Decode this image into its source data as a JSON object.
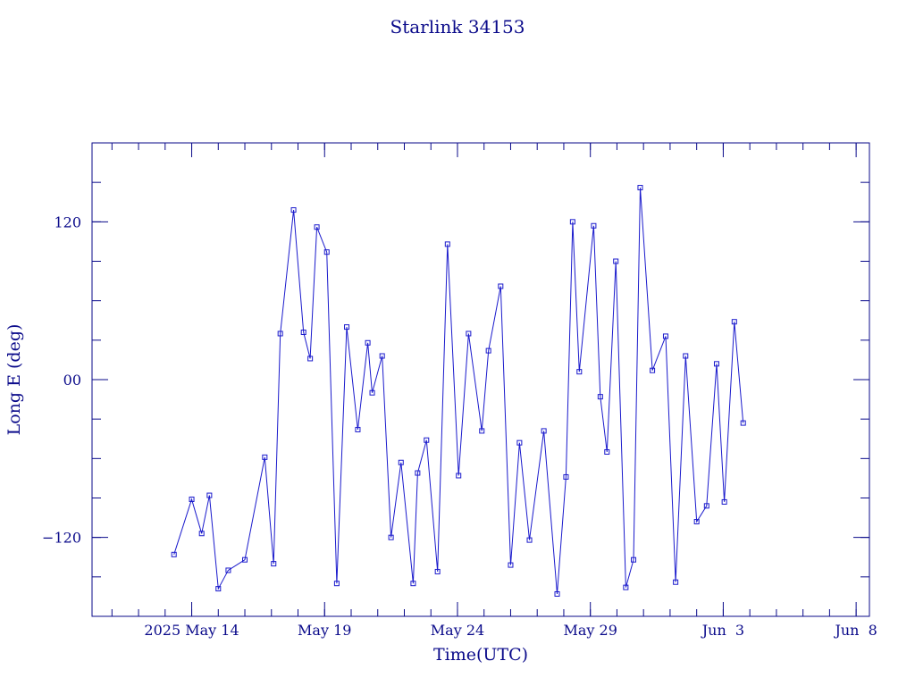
{
  "chart_data": {
    "type": "line",
    "title": "Starlink 34153",
    "xlabel": "Time(UTC)",
    "ylabel": "Long E (deg)",
    "xlim": [
      "2025-05-10T06:00",
      "2025-06-08T12:00"
    ],
    "ylim": [
      -180,
      180
    ],
    "x_ticks": [
      {
        "label": "2025 May 14",
        "date": "2025-05-14"
      },
      {
        "label": "May 19",
        "date": "2025-05-19"
      },
      {
        "label": "May 24",
        "date": "2025-05-24"
      },
      {
        "label": "May 29",
        "date": "2025-05-29"
      },
      {
        "label": "Jun  3",
        "date": "2025-06-03"
      },
      {
        "label": "Jun  8",
        "date": "2025-06-08"
      }
    ],
    "y_ticks": [
      {
        "label": "−120",
        "value": -120
      },
      {
        "label": "00",
        "value": 0
      },
      {
        "label": "120",
        "value": 120
      }
    ],
    "color": "#1a1acc",
    "grid": false,
    "x": [
      "2025-05-13T08:00",
      "2025-05-14T00:00",
      "2025-05-14T09:00",
      "2025-05-14T16:00",
      "2025-05-15T00:00",
      "2025-05-15T09:00",
      "2025-05-16T00:00",
      "2025-05-16T18:00",
      "2025-05-17T02:00",
      "2025-05-17T08:00",
      "2025-05-17T20:00",
      "2025-05-18T05:00",
      "2025-05-18T11:00",
      "2025-05-18T17:00",
      "2025-05-19T02:00",
      "2025-05-19T11:00",
      "2025-05-19T20:00",
      "2025-05-20T06:00",
      "2025-05-20T15:00",
      "2025-05-20T19:00",
      "2025-05-21T04:00",
      "2025-05-21T12:00",
      "2025-05-21T21:00",
      "2025-05-22T08:00",
      "2025-05-22T12:00",
      "2025-05-22T20:00",
      "2025-05-23T06:00",
      "2025-05-23T15:00",
      "2025-05-24T01:00",
      "2025-05-24T10:00",
      "2025-05-24T22:00",
      "2025-05-25T04:00",
      "2025-05-25T15:00",
      "2025-05-26T00:00",
      "2025-05-26T08:00",
      "2025-05-26T17:00",
      "2025-05-27T06:00",
      "2025-05-27T18:00",
      "2025-05-28T02:00",
      "2025-05-28T08:00",
      "2025-05-28T14:00",
      "2025-05-29T03:00",
      "2025-05-29T09:00",
      "2025-05-29T15:00",
      "2025-05-29T23:00",
      "2025-05-30T08:00",
      "2025-05-30T15:00",
      "2025-05-30T21:00",
      "2025-05-31T08:00",
      "2025-05-31T20:00",
      "2025-06-01T05:00",
      "2025-06-01T14:00",
      "2025-06-02T00:00",
      "2025-06-02T09:00",
      "2025-06-02T18:00",
      "2025-06-03T01:00",
      "2025-06-03T10:00",
      "2025-06-03T18:00"
    ],
    "y": [
      -133,
      -91,
      -117,
      -88,
      -159,
      -145,
      -137,
      -59,
      -140,
      35,
      129,
      36,
      16,
      116,
      97,
      -155,
      40,
      -38,
      28,
      -10,
      18,
      -120,
      -63,
      -155,
      -71,
      -46,
      -146,
      103,
      -73,
      35,
      -39,
      22,
      71,
      -141,
      -48,
      -122,
      -39,
      -163,
      -74,
      120,
      6,
      117,
      -13,
      -55,
      90,
      -158,
      -137,
      146,
      7,
      33,
      -154,
      18,
      -108,
      -96,
      12,
      -93,
      44,
      -33
    ]
  }
}
